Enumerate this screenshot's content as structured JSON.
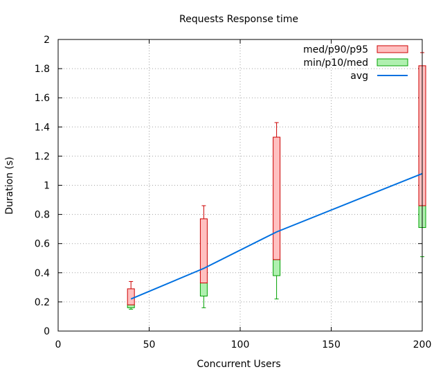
{
  "chart_data": {
    "type": "candlestick",
    "title": "Requests Response time",
    "xlabel": "Concurrent Users",
    "ylabel": "Duration (s)",
    "xlim": [
      0,
      200
    ],
    "ylim": [
      0,
      2
    ],
    "x_ticks": [
      0,
      50,
      100,
      150,
      200
    ],
    "y_ticks": [
      0,
      0.2,
      0.4,
      0.6,
      0.8,
      1,
      1.2,
      1.4,
      1.6,
      1.8,
      2
    ],
    "grid": true,
    "legend_position": "top-right",
    "series": [
      {
        "name": "med/p90/p95",
        "color_fill": "#ffc0c0",
        "color_line": "#cc0000",
        "points": [
          {
            "x": 40,
            "med": 0.18,
            "p90": 0.29,
            "p95": 0.34
          },
          {
            "x": 80,
            "med": 0.33,
            "p90": 0.77,
            "p95": 0.86
          },
          {
            "x": 120,
            "med": 0.49,
            "p90": 1.33,
            "p95": 1.43
          },
          {
            "x": 200,
            "med": 0.86,
            "p90": 1.82,
            "p95": 1.91
          }
        ]
      },
      {
        "name": "min/p10/med",
        "color_fill": "#b0f0b0",
        "color_line": "#00a000",
        "points": [
          {
            "x": 40,
            "min": 0.15,
            "p10": 0.16,
            "med": 0.18
          },
          {
            "x": 80,
            "min": 0.16,
            "p10": 0.24,
            "med": 0.33
          },
          {
            "x": 120,
            "min": 0.22,
            "p10": 0.38,
            "med": 0.49
          },
          {
            "x": 200,
            "min": 0.51,
            "p10": 0.71,
            "med": 0.86
          }
        ]
      },
      {
        "name": "avg",
        "color_line": "#0070e0",
        "x": [
          40,
          80,
          120,
          200
        ],
        "y": [
          0.22,
          0.43,
          0.68,
          1.08
        ]
      }
    ]
  }
}
